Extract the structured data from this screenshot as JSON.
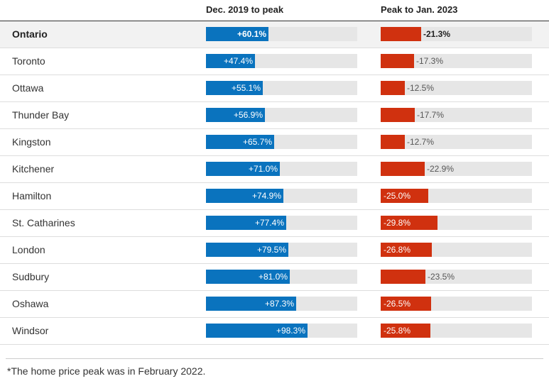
{
  "columns": {
    "first": "Dec. 2019 to peak",
    "second": "Peak to Jan. 2023"
  },
  "footnote": "*The home price peak was in February 2022.",
  "colors": {
    "increase": "#0a73be",
    "decrease": "#d0310f",
    "track": "#e6e6e6"
  },
  "chart_data": {
    "type": "bar",
    "categories": [
      "Ontario",
      "Toronto",
      "Ottawa",
      "Thunder Bay",
      "Kingston",
      "Kitchener",
      "Hamilton",
      "St. Catharines",
      "London",
      "Sudbury",
      "Oshawa",
      "Windsor"
    ],
    "series": [
      {
        "name": "Dec. 2019 to peak",
        "values": [
          60.1,
          47.4,
          55.1,
          56.9,
          65.7,
          71.0,
          74.9,
          77.4,
          79.5,
          81.0,
          87.3,
          98.3
        ],
        "labels": [
          "+60.1%",
          "+47.4%",
          "+55.1%",
          "+56.9%",
          "+65.7%",
          "+71.0%",
          "+74.9%",
          "+77.4%",
          "+79.5%",
          "+81.0%",
          "+87.3%",
          "+98.3%"
        ]
      },
      {
        "name": "Peak to Jan. 2023",
        "values": [
          -21.3,
          -17.3,
          -12.5,
          -17.7,
          -12.7,
          -22.9,
          -25.0,
          -29.8,
          -26.8,
          -23.5,
          -26.5,
          -25.8
        ],
        "labels": [
          "-21.3%",
          "-17.3%",
          "-12.5%",
          "-17.7%",
          "-12.7%",
          "-22.9%",
          "-25.0%",
          "-29.8%",
          "-26.8%",
          "-23.5%",
          "-26.5%",
          "-25.8%"
        ]
      }
    ],
    "highlight_category": "Ontario",
    "label_inside": [
      [
        true,
        true,
        true,
        true,
        true,
        true,
        true,
        true,
        true,
        true,
        true,
        true
      ],
      [
        false,
        false,
        false,
        false,
        false,
        false,
        true,
        true,
        true,
        false,
        true,
        true
      ]
    ],
    "ranges": [
      [
        0,
        146
      ],
      [
        0,
        79
      ]
    ]
  }
}
